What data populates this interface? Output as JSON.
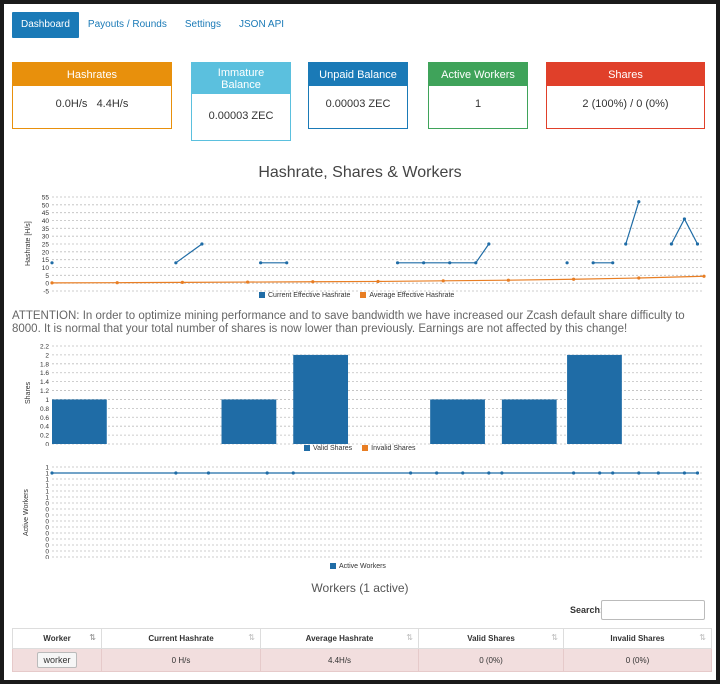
{
  "nav": {
    "tabs": [
      "Dashboard",
      "Payouts / Rounds",
      "Settings",
      "JSON API"
    ],
    "active": 0
  },
  "cards": [
    {
      "title": "Hashrates",
      "value": "0.0H/s   4.4H/s",
      "color": "#e8900c"
    },
    {
      "title": "Immature Balance",
      "value": "0.00003 ZEC",
      "color": "#5bc0de"
    },
    {
      "title": "Unpaid Balance",
      "value": "0.00003 ZEC",
      "color": "#1a7ab7"
    },
    {
      "title": "Active Workers",
      "value": "1",
      "color": "#3fa35a"
    },
    {
      "title": "Shares",
      "value": "2 (100%) / 0 (0%)",
      "color": "#e0402a"
    }
  ],
  "main_title": "Hashrate, Shares & Workers",
  "attention": "ATTENTION: In order to optimize mining performance and to save bandwidth we have increased our Zcash default share difficulty to 8000. It is normal that your total number of shares is now lower than previously. Earnings are not affected by this change!",
  "chart_data": [
    {
      "type": "line",
      "ylabel": "Hashrate [H/s]",
      "yticks": [
        "55",
        "50",
        "45",
        "40",
        "35",
        "30",
        "25",
        "20",
        "15",
        "10",
        "5",
        "0",
        "-5"
      ],
      "ylim": [
        -5,
        55
      ],
      "grid": true,
      "legend_position": "bottom",
      "series": [
        {
          "name": "Current Effective Hashrate",
          "color": "#1f6ca6",
          "segments": [
            [
              [
                0,
                13
              ]
            ],
            [
              [
                19,
                13
              ],
              [
                23,
                25
              ]
            ],
            [
              [
                32,
                13
              ],
              [
                36,
                13
              ]
            ],
            [
              [
                53,
                13
              ],
              [
                57,
                13
              ],
              [
                61,
                13
              ],
              [
                65,
                13
              ],
              [
                67,
                25
              ]
            ],
            [
              [
                79,
                13
              ]
            ],
            [
              [
                83,
                13
              ],
              [
                86,
                13
              ]
            ],
            [
              [
                88,
                25
              ],
              [
                90,
                52
              ]
            ],
            [
              [
                95,
                25
              ],
              [
                97,
                41
              ],
              [
                99,
                25
              ]
            ]
          ]
        },
        {
          "name": "Average Effective Hashrate",
          "color": "#e87e24",
          "segments": [
            [
              [
                0,
                0.2
              ],
              [
                10,
                0.3
              ],
              [
                20,
                0.5
              ],
              [
                30,
                0.7
              ],
              [
                40,
                0.9
              ],
              [
                50,
                1.1
              ],
              [
                60,
                1.5
              ],
              [
                70,
                1.9
              ],
              [
                80,
                2.5
              ],
              [
                90,
                3.3
              ],
              [
                100,
                4.4
              ]
            ]
          ]
        }
      ]
    },
    {
      "type": "bar",
      "ylabel": "Shares",
      "yticks": [
        "2.2",
        "2",
        "1.8",
        "1.6",
        "1.4",
        "1.2",
        "1",
        "0.8",
        "0.6",
        "0.4",
        "0.2",
        "0"
      ],
      "ylim": [
        0,
        2.2
      ],
      "grid": true,
      "legend_position": "bottom",
      "bars": [
        {
          "x": 0,
          "value": 1
        },
        {
          "x": 26,
          "value": 1
        },
        {
          "x": 37,
          "value": 2
        },
        {
          "x": 58,
          "value": 1
        },
        {
          "x": 69,
          "value": 1
        },
        {
          "x": 79,
          "value": 2
        }
      ],
      "series": [
        {
          "name": "Valid Shares",
          "color": "#1f6ca6"
        },
        {
          "name": "Invalid Shares",
          "color": "#e87e24"
        }
      ]
    },
    {
      "type": "line",
      "ylabel": "Active Workers",
      "yticks": [
        "1",
        "1",
        "1",
        "1",
        "1",
        "1",
        "0",
        "0",
        "0",
        "0",
        "0",
        "0",
        "0",
        "0",
        "0",
        "0"
      ],
      "ylim": [
        0,
        1
      ],
      "grid": true,
      "legend_position": "bottom",
      "series": [
        {
          "name": "Active Workers",
          "color": "#1f6ca6",
          "points": [
            [
              0,
              1
            ],
            [
              19,
              1
            ],
            [
              24,
              1
            ],
            [
              33,
              1
            ],
            [
              37,
              1
            ],
            [
              55,
              1
            ],
            [
              59,
              1
            ],
            [
              63,
              1
            ],
            [
              67,
              1
            ],
            [
              69,
              1
            ],
            [
              80,
              1
            ],
            [
              84,
              1
            ],
            [
              86,
              1
            ],
            [
              90,
              1
            ],
            [
              93,
              1
            ],
            [
              97,
              1
            ],
            [
              99,
              1
            ]
          ]
        }
      ]
    }
  ],
  "workers": {
    "title": "Workers (1 active)",
    "search_label": "Search:",
    "search_value": "",
    "columns": [
      "Worker",
      "Current Hashrate",
      "Average Hashrate",
      "Valid Shares",
      "Invalid Shares"
    ],
    "rows": [
      {
        "name": "worker",
        "current": "0 H/s",
        "average": "4.4H/s",
        "valid": "0 (0%)",
        "invalid": "0 (0%)"
      }
    ]
  }
}
